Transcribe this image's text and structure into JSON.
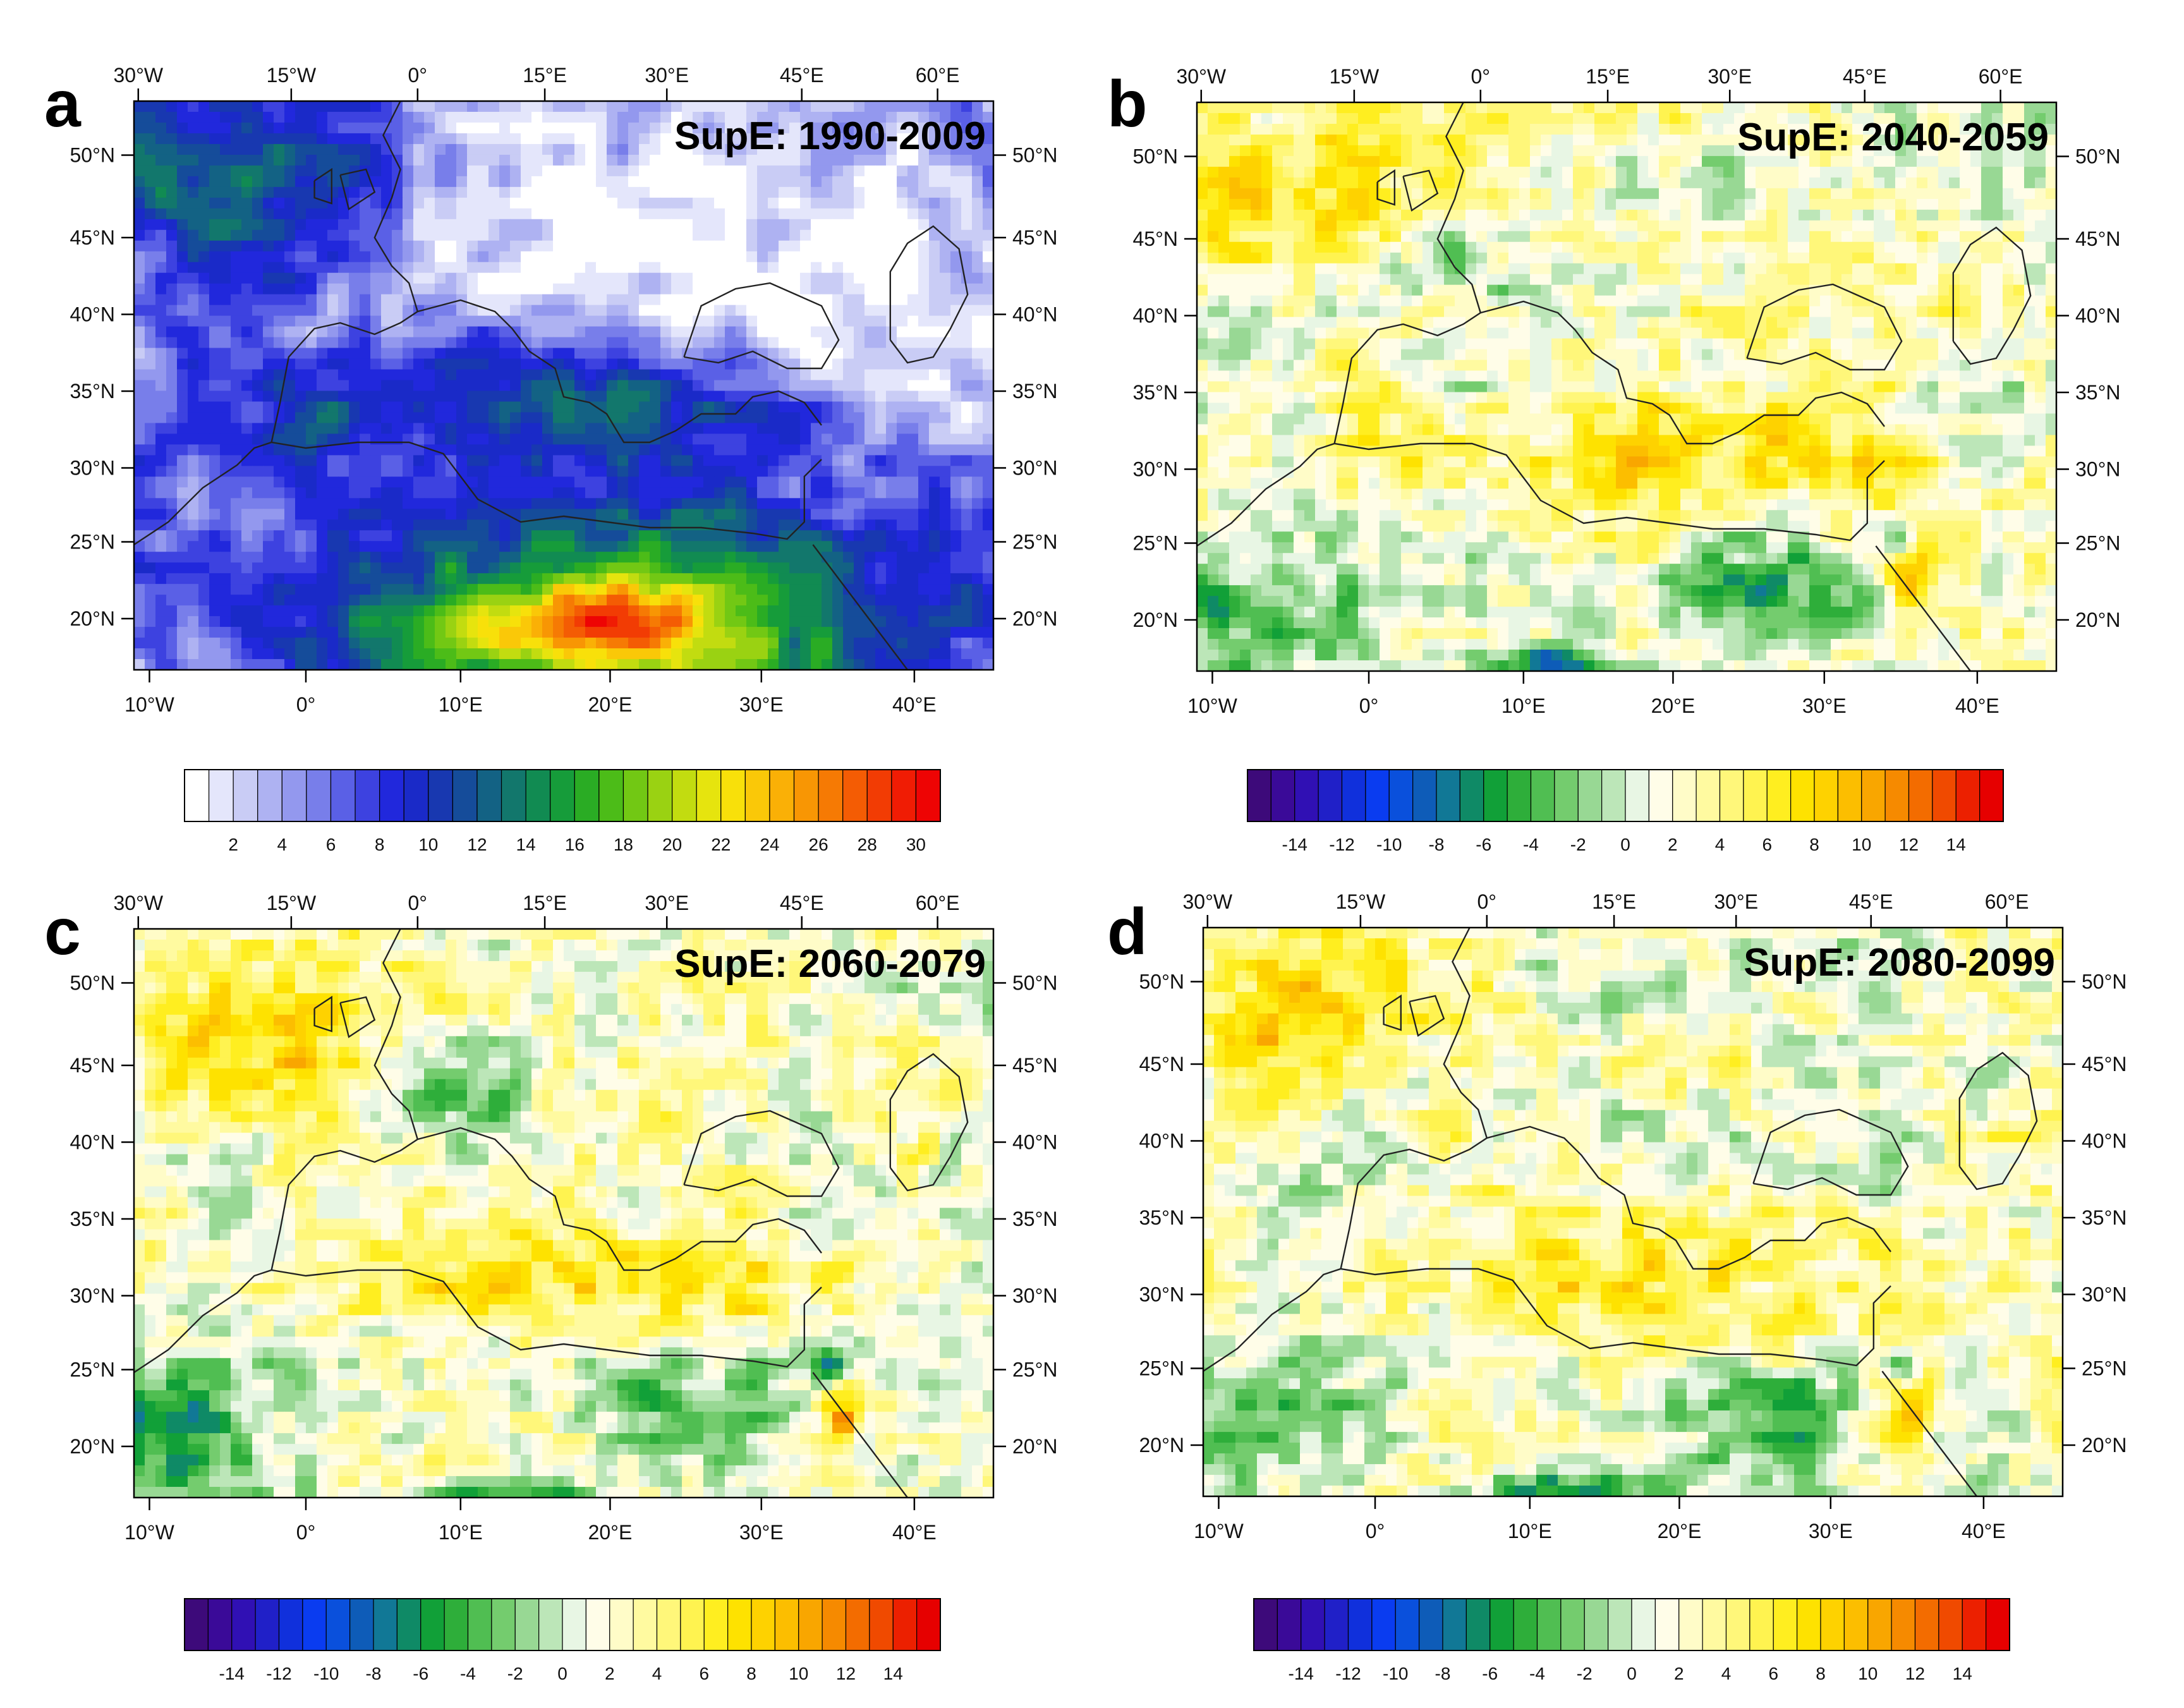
{
  "figure": {
    "panels": [
      {
        "letter": "a",
        "title": "SupE: 1990-2009",
        "field_type": "absolute",
        "top_lon_labels": [
          "30°W",
          "15°W",
          "0°",
          "15°E",
          "30°E",
          "45°E",
          "60°E"
        ],
        "bottom_lon_labels": [
          "10°W",
          "0°",
          "10°E",
          "20°E",
          "30°E",
          "40°E"
        ],
        "left_lat_labels": [
          "50°N",
          "45°N",
          "40°N",
          "35°N",
          "30°N",
          "25°N",
          "20°N"
        ],
        "right_lat_labels": [
          "50°N",
          "45°N",
          "40°N",
          "35°N",
          "30°N",
          "25°N",
          "20°N"
        ],
        "colorbar_labels": [
          "2",
          "4",
          "6",
          "8",
          "10",
          "12",
          "14",
          "16",
          "18",
          "20",
          "22",
          "24",
          "26",
          "28",
          "30"
        ]
      },
      {
        "letter": "b",
        "title": "SupE: 2040-2059",
        "field_type": "change",
        "top_lon_labels": [
          "30°W",
          "15°W",
          "0°",
          "15°E",
          "30°E",
          "45°E",
          "60°E"
        ],
        "bottom_lon_labels": [
          "10°W",
          "0°",
          "10°E",
          "20°E",
          "30°E",
          "40°E"
        ],
        "left_lat_labels": [
          "50°N",
          "45°N",
          "40°N",
          "35°N",
          "30°N",
          "25°N",
          "20°N"
        ],
        "right_lat_labels": [
          "50°N",
          "45°N",
          "40°N",
          "35°N",
          "30°N",
          "25°N",
          "20°N"
        ],
        "colorbar_labels": [
          "-14",
          "-12",
          "-10",
          "-8",
          "-6",
          "-4",
          "-2",
          "0",
          "2",
          "4",
          "6",
          "8",
          "10",
          "12",
          "14"
        ]
      },
      {
        "letter": "c",
        "title": "SupE: 2060-2079",
        "field_type": "change",
        "top_lon_labels": [
          "30°W",
          "15°W",
          "0°",
          "15°E",
          "30°E",
          "45°E",
          "60°E"
        ],
        "bottom_lon_labels": [
          "10°W",
          "0°",
          "10°E",
          "20°E",
          "30°E",
          "40°E"
        ],
        "left_lat_labels": [
          "50°N",
          "45°N",
          "40°N",
          "35°N",
          "30°N",
          "25°N",
          "20°N"
        ],
        "right_lat_labels": [
          "50°N",
          "45°N",
          "40°N",
          "35°N",
          "30°N",
          "25°N",
          "20°N"
        ],
        "colorbar_labels": [
          "-14",
          "-12",
          "-10",
          "-8",
          "-6",
          "-4",
          "-2",
          "0",
          "2",
          "4",
          "6",
          "8",
          "10",
          "12",
          "14"
        ]
      },
      {
        "letter": "d",
        "title": "SupE: 2080-2099",
        "field_type": "change",
        "top_lon_labels": [
          "30°W",
          "15°W",
          "0°",
          "15°E",
          "30°E",
          "45°E",
          "60°E"
        ],
        "bottom_lon_labels": [
          "10°W",
          "0°",
          "10°E",
          "20°E",
          "30°E",
          "40°E"
        ],
        "left_lat_labels": [
          "50°N",
          "45°N",
          "40°N",
          "35°N",
          "30°N",
          "25°N",
          "20°N"
        ],
        "right_lat_labels": [
          "50°N",
          "45°N",
          "40°N",
          "35°N",
          "30°N",
          "25°N",
          "20°N"
        ],
        "colorbar_labels": [
          "-14",
          "-12",
          "-10",
          "-8",
          "-6",
          "-4",
          "-2",
          "0",
          "2",
          "4",
          "6",
          "8",
          "10",
          "12",
          "14"
        ]
      }
    ],
    "colors": {
      "absolute_palette": [
        "#ffffff",
        "#e4e6fb",
        "#c9ccf5",
        "#aeb2f2",
        "#9398ee",
        "#787eea",
        "#5a60e6",
        "#3d42e0",
        "#2128dc",
        "#1a2ac8",
        "#1838b0",
        "#154c9a",
        "#136284",
        "#12776c",
        "#118b52",
        "#169c3a",
        "#2aac24",
        "#4cbc18",
        "#72c814",
        "#9ad212",
        "#c2dc10",
        "#e6e40e",
        "#f8e00a",
        "#fac808",
        "#fab006",
        "#f89604",
        "#f67a04",
        "#f45c04",
        "#f23c04",
        "#f01c04",
        "#ee0404"
      ],
      "change_palette": [
        "#3d0a7a",
        "#3a0a98",
        "#3010b4",
        "#2020c8",
        "#1030dc",
        "#0a3cf0",
        "#0a50dc",
        "#0e5cb8",
        "#117896",
        "#0f8a66",
        "#11a038",
        "#2eae3a",
        "#50be52",
        "#74cc6e",
        "#98d894",
        "#bce6b8",
        "#e8f6e4",
        "#fffde8",
        "#fffcc8",
        "#fffaa0",
        "#fff77a",
        "#fff350",
        "#ffee20",
        "#fee200",
        "#fed200",
        "#fcbe00",
        "#f9a600",
        "#f68a00",
        "#f36c00",
        "#f04a00",
        "#ec2000",
        "#e60000"
      ],
      "coastline": "#222222"
    }
  }
}
